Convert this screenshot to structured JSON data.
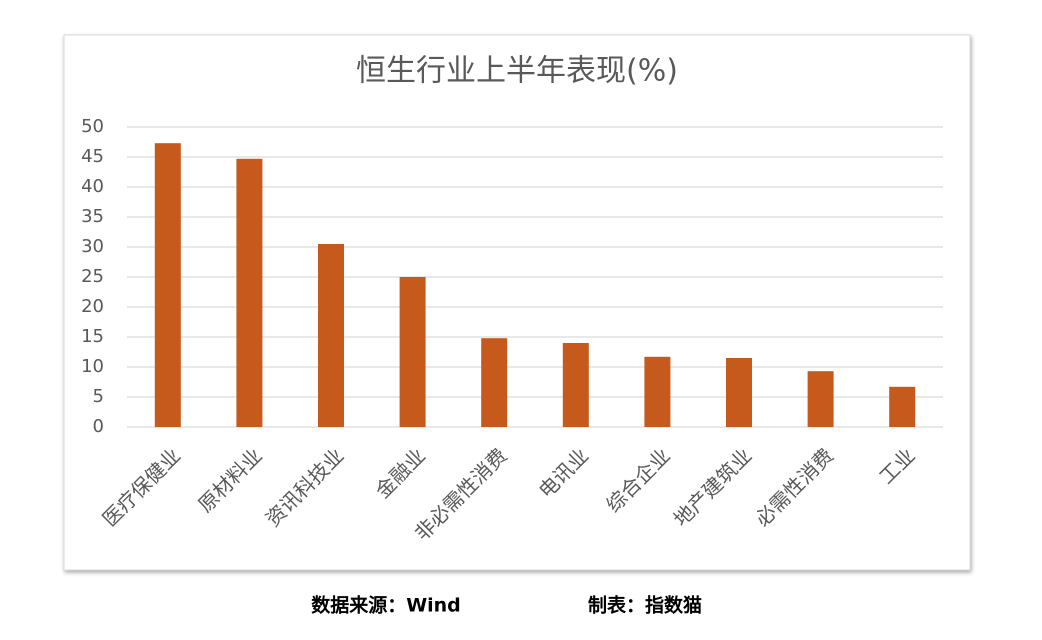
{
  "chart_data": {
    "type": "bar",
    "title": "恒生行业上半年表现(%)",
    "categories": [
      "医疗保健业",
      "原材料业",
      "资讯科技业",
      "金融业",
      "非必需性消费",
      "电讯业",
      "综合企业",
      "地产建筑业",
      "必需性消费",
      "工业"
    ],
    "values": [
      47.3,
      44.7,
      30.5,
      25,
      14.8,
      14,
      11.7,
      11.5,
      9.3,
      6.7
    ],
    "color": "#c55a1c",
    "ylim": [
      0,
      50
    ],
    "yticks": [
      0,
      5,
      10,
      15,
      20,
      25,
      30,
      35,
      40,
      45,
      50
    ],
    "grid": true
  },
  "footer": {
    "source": "数据来源：Wind",
    "credit": "制表：指数猫"
  }
}
